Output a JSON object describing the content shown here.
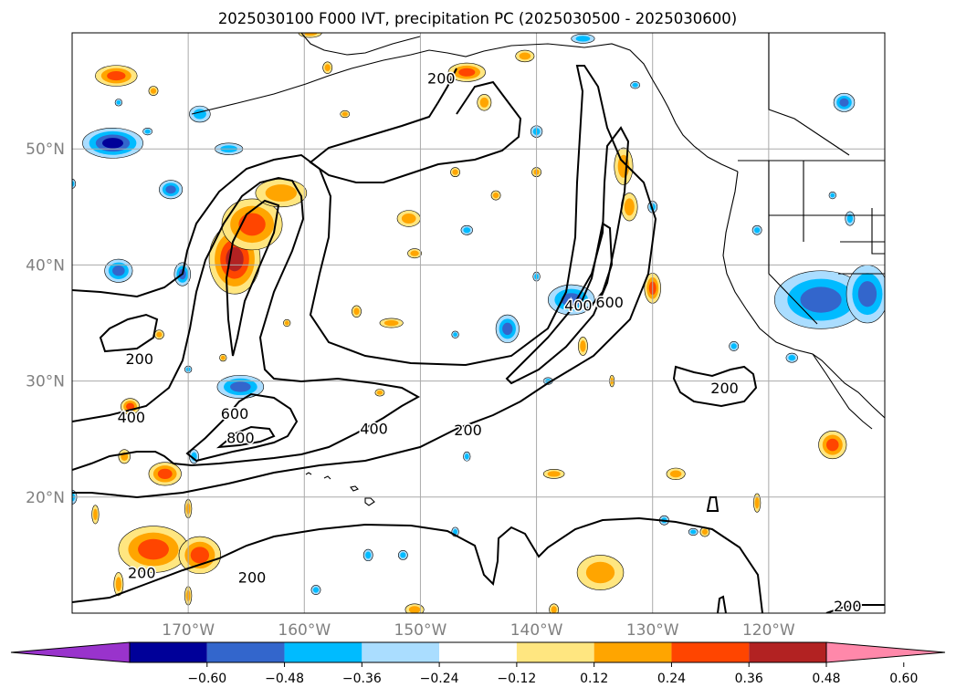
{
  "title": "2025030100 F000 IVT, precipitation PC (2025030500 - 2025030600)",
  "map": {
    "lon_range": [
      -180,
      -110
    ],
    "lat_range": [
      10,
      60
    ],
    "gridlines": true,
    "lon_labels": [
      "170°W",
      "160°W",
      "150°W",
      "140°W",
      "130°W",
      "120°W"
    ],
    "lat_labels": [
      "20°N",
      "30°N",
      "40°N",
      "50°N"
    ],
    "label_color": "#808080"
  },
  "ivt_contours": {
    "color": "#000000",
    "labels": [
      {
        "text": "200",
        "lon": -174.2,
        "lat": 31.8
      },
      {
        "text": "400",
        "lon": -174.9,
        "lat": 26.8
      },
      {
        "text": "600",
        "lon": -166.0,
        "lat": 27.1
      },
      {
        "text": "800",
        "lon": -165.5,
        "lat": 25.0
      },
      {
        "text": "400",
        "lon": -154.0,
        "lat": 25.8
      },
      {
        "text": "200",
        "lon": -145.9,
        "lat": 25.7
      },
      {
        "text": "200",
        "lon": -174.0,
        "lat": 13.4
      },
      {
        "text": "200",
        "lon": -164.5,
        "lat": 13.0
      },
      {
        "text": "200",
        "lon": -148.2,
        "lat": 56.0
      },
      {
        "text": "400",
        "lon": -136.4,
        "lat": 36.4
      },
      {
        "text": "600",
        "lon": -133.7,
        "lat": 36.7
      },
      {
        "text": "200",
        "lon": -123.8,
        "lat": 29.3
      },
      {
        "text": "200",
        "lon": -113.2,
        "lat": 10.5
      }
    ]
  },
  "colorbar": {
    "levels": [
      "−0.60",
      "−0.48",
      "−0.36",
      "−0.24",
      "−0.12",
      "0.12",
      "0.24",
      "0.36",
      "0.48",
      "0.60"
    ],
    "colors": [
      "#9933cc",
      "#000099",
      "#3366cc",
      "#00bbff",
      "#aaddff",
      "#ffffff",
      "#ffe680",
      "#ffa500",
      "#ff4500",
      "#b22222",
      "#ff88aa"
    ]
  },
  "precip_pc_features": [
    {
      "lon": -166.0,
      "lat": 40.5,
      "rx": 2.2,
      "ry": 3.0,
      "level": 4
    },
    {
      "lon": -164.5,
      "lat": 43.5,
      "rx": 2.6,
      "ry": 2.2,
      "level": 3
    },
    {
      "lon": -162.0,
      "lat": 46.2,
      "rx": 2.2,
      "ry": 1.2,
      "level": 2
    },
    {
      "lon": -176.5,
      "lat": 50.5,
      "rx": 2.6,
      "ry": 1.3,
      "level": -4
    },
    {
      "lon": -176.2,
      "lat": 56.3,
      "rx": 1.8,
      "ry": 0.9,
      "level": 3
    },
    {
      "lon": -146.0,
      "lat": 56.6,
      "rx": 1.6,
      "ry": 0.8,
      "level": 3
    },
    {
      "lon": -137.0,
      "lat": 37.0,
      "rx": 2.0,
      "ry": 1.3,
      "level": -3
    },
    {
      "lon": -142.5,
      "lat": 34.5,
      "rx": 1.0,
      "ry": 1.2,
      "level": -3
    },
    {
      "lon": -115.5,
      "lat": 37.0,
      "rx": 4.0,
      "ry": 2.5,
      "level": -3
    },
    {
      "lon": -111.5,
      "lat": 37.5,
      "rx": 1.8,
      "ry": 2.5,
      "level": -3
    },
    {
      "lon": -165.5,
      "lat": 29.5,
      "rx": 2.0,
      "ry": 1.0,
      "level": -3
    },
    {
      "lon": -173.0,
      "lat": 15.5,
      "rx": 3.0,
      "ry": 2.0,
      "level": 3
    },
    {
      "lon": -169.0,
      "lat": 15.0,
      "rx": 1.8,
      "ry": 1.6,
      "level": 3
    },
    {
      "lon": -134.5,
      "lat": 13.5,
      "rx": 2.0,
      "ry": 1.5,
      "level": 2
    },
    {
      "lon": -114.5,
      "lat": 24.5,
      "rx": 1.2,
      "ry": 1.2,
      "level": 3
    },
    {
      "lon": -130.0,
      "lat": 38.0,
      "rx": 0.7,
      "ry": 1.3,
      "level": 3
    },
    {
      "lon": -132.5,
      "lat": 48.5,
      "rx": 0.8,
      "ry": 1.6,
      "level": 2
    },
    {
      "lon": -132.0,
      "lat": 45.0,
      "rx": 0.7,
      "ry": 1.2,
      "level": 2
    },
    {
      "lon": -172.0,
      "lat": 22.0,
      "rx": 1.4,
      "ry": 1.0,
      "level": 3
    },
    {
      "lon": -176.0,
      "lat": 39.5,
      "rx": 1.2,
      "ry": 1.0,
      "level": -3
    },
    {
      "lon": -170.5,
      "lat": 39.2,
      "rx": 0.7,
      "ry": 1.0,
      "level": -3
    },
    {
      "lon": -151.0,
      "lat": 44.0,
      "rx": 1.0,
      "ry": 0.7,
      "level": 2
    },
    {
      "lon": -175.0,
      "lat": 27.8,
      "rx": 0.8,
      "ry": 0.7,
      "level": 3
    },
    {
      "lon": -166.5,
      "lat": 50.0,
      "rx": 1.2,
      "ry": 0.5,
      "level": -2
    },
    {
      "lon": -171.5,
      "lat": 46.5,
      "rx": 1.0,
      "ry": 0.8,
      "level": -3
    },
    {
      "lon": -169.0,
      "lat": 53.0,
      "rx": 0.9,
      "ry": 0.7,
      "level": -2
    },
    {
      "lon": -152.5,
      "lat": 35.0,
      "rx": 1.0,
      "ry": 0.4,
      "level": 2
    },
    {
      "lon": -138.5,
      "lat": 22.0,
      "rx": 0.9,
      "ry": 0.4,
      "level": 2
    },
    {
      "lon": -128.0,
      "lat": 22.0,
      "rx": 0.8,
      "ry": 0.5,
      "level": 2
    },
    {
      "lon": -113.5,
      "lat": 54.0,
      "rx": 0.9,
      "ry": 0.8,
      "level": -3
    },
    {
      "lon": -155.5,
      "lat": 36.0,
      "rx": 0.4,
      "ry": 0.5,
      "level": 2
    },
    {
      "lon": -144.5,
      "lat": 54.0,
      "rx": 0.6,
      "ry": 0.7,
      "level": 2
    },
    {
      "lon": -147.0,
      "lat": 48.0,
      "rx": 0.4,
      "ry": 0.4,
      "level": 2
    },
    {
      "lon": -150.5,
      "lat": 41.0,
      "rx": 0.6,
      "ry": 0.4,
      "level": 2
    },
    {
      "lon": -140.0,
      "lat": 48.0,
      "rx": 0.4,
      "ry": 0.4,
      "level": 2
    },
    {
      "lon": -143.5,
      "lat": 46.0,
      "rx": 0.4,
      "ry": 0.4,
      "level": 2
    },
    {
      "lon": -175.5,
      "lat": 23.5,
      "rx": 0.5,
      "ry": 0.6,
      "level": 2
    },
    {
      "lon": -170.0,
      "lat": 19.0,
      "rx": 0.3,
      "ry": 0.8,
      "level": 2
    },
    {
      "lon": -178.0,
      "lat": 18.5,
      "rx": 0.3,
      "ry": 0.8,
      "level": 2
    },
    {
      "lon": -176.0,
      "lat": 12.5,
      "rx": 0.4,
      "ry": 1.0,
      "level": 2
    },
    {
      "lon": -170.0,
      "lat": 11.5,
      "rx": 0.3,
      "ry": 0.8,
      "level": 2
    },
    {
      "lon": -136.0,
      "lat": 33.0,
      "rx": 0.4,
      "ry": 0.8,
      "level": 2
    },
    {
      "lon": -121.0,
      "lat": 19.5,
      "rx": 0.3,
      "ry": 0.8,
      "level": 2
    },
    {
      "lon": -125.5,
      "lat": 17.0,
      "rx": 0.4,
      "ry": 0.4,
      "level": 2
    },
    {
      "lon": -167.0,
      "lat": 32.0,
      "rx": 0.3,
      "ry": 0.3,
      "level": 2
    },
    {
      "lon": -172.5,
      "lat": 34.0,
      "rx": 0.4,
      "ry": 0.4,
      "level": 2
    },
    {
      "lon": -173.0,
      "lat": 55.0,
      "rx": 0.4,
      "ry": 0.4,
      "level": 2
    },
    {
      "lon": -161.5,
      "lat": 35.0,
      "rx": 0.3,
      "ry": 0.3,
      "level": 2
    },
    {
      "lon": -133.5,
      "lat": 30.0,
      "rx": 0.2,
      "ry": 0.5,
      "level": 2
    },
    {
      "lon": -153.5,
      "lat": 29.0,
      "rx": 0.4,
      "ry": 0.3,
      "level": 2
    },
    {
      "lon": -156.5,
      "lat": 53.0,
      "rx": 0.4,
      "ry": 0.3,
      "level": 2
    },
    {
      "lon": -150.5,
      "lat": 10.3,
      "rx": 0.8,
      "ry": 0.5,
      "level": 2
    },
    {
      "lon": -138.5,
      "lat": 10.3,
      "rx": 0.4,
      "ry": 0.5,
      "level": 2
    },
    {
      "lon": -159.5,
      "lat": 60.0,
      "rx": 1.0,
      "ry": 0.4,
      "level": 2
    },
    {
      "lon": -158.0,
      "lat": 57.0,
      "rx": 0.4,
      "ry": 0.5,
      "level": 2
    },
    {
      "lon": -141.0,
      "lat": 58.0,
      "rx": 0.8,
      "ry": 0.5,
      "level": 2
    },
    {
      "lon": -146.0,
      "lat": 23.5,
      "rx": 0.3,
      "ry": 0.4,
      "level": -2
    },
    {
      "lon": -140.0,
      "lat": 39.0,
      "rx": 0.3,
      "ry": 0.4,
      "level": -2
    },
    {
      "lon": -140.0,
      "lat": 51.5,
      "rx": 0.5,
      "ry": 0.5,
      "level": -2
    },
    {
      "lon": -146.0,
      "lat": 43.0,
      "rx": 0.5,
      "ry": 0.4,
      "level": -2
    },
    {
      "lon": -130.0,
      "lat": 45.0,
      "rx": 0.4,
      "ry": 0.5,
      "level": -2
    },
    {
      "lon": -147.0,
      "lat": 34.0,
      "rx": 0.3,
      "ry": 0.3,
      "level": -2
    },
    {
      "lon": -139.0,
      "lat": 30.0,
      "rx": 0.4,
      "ry": 0.3,
      "level": -2
    },
    {
      "lon": -154.5,
      "lat": 15.0,
      "rx": 0.4,
      "ry": 0.5,
      "level": -2
    },
    {
      "lon": -147.0,
      "lat": 17.0,
      "rx": 0.3,
      "ry": 0.4,
      "level": -2
    },
    {
      "lon": -151.5,
      "lat": 15.0,
      "rx": 0.4,
      "ry": 0.4,
      "level": -2
    },
    {
      "lon": -159.0,
      "lat": 12.0,
      "rx": 0.4,
      "ry": 0.4,
      "level": -2
    },
    {
      "lon": -129.0,
      "lat": 18.0,
      "rx": 0.4,
      "ry": 0.4,
      "level": -2
    },
    {
      "lon": -126.5,
      "lat": 17.0,
      "rx": 0.4,
      "ry": 0.3,
      "level": -2
    },
    {
      "lon": -123.0,
      "lat": 33.0,
      "rx": 0.4,
      "ry": 0.4,
      "level": -2
    },
    {
      "lon": -118.0,
      "lat": 32.0,
      "rx": 0.5,
      "ry": 0.4,
      "level": -2
    },
    {
      "lon": -114.5,
      "lat": 46.0,
      "rx": 0.3,
      "ry": 0.3,
      "level": -2
    },
    {
      "lon": -113.0,
      "lat": 44.0,
      "rx": 0.4,
      "ry": 0.6,
      "level": -2
    },
    {
      "lon": -121.0,
      "lat": 43.0,
      "rx": 0.4,
      "ry": 0.4,
      "level": -2
    },
    {
      "lon": -176.0,
      "lat": 54.0,
      "rx": 0.3,
      "ry": 0.3,
      "level": -2
    },
    {
      "lon": -173.5,
      "lat": 51.5,
      "rx": 0.4,
      "ry": 0.3,
      "level": -2
    },
    {
      "lon": -180.0,
      "lat": 47.0,
      "rx": 0.3,
      "ry": 0.4,
      "level": -2
    },
    {
      "lon": -180.0,
      "lat": 20.0,
      "rx": 0.4,
      "ry": 0.6,
      "level": -2
    },
    {
      "lon": -169.5,
      "lat": 23.5,
      "rx": 0.4,
      "ry": 0.6,
      "level": -2
    },
    {
      "lon": -170.0,
      "lat": 31.0,
      "rx": 0.3,
      "ry": 0.3,
      "level": -2
    },
    {
      "lon": -131.5,
      "lat": 55.5,
      "rx": 0.4,
      "ry": 0.3,
      "level": -2
    },
    {
      "lon": -136.0,
      "lat": 59.5,
      "rx": 1.0,
      "ry": 0.4,
      "level": -2
    }
  ]
}
